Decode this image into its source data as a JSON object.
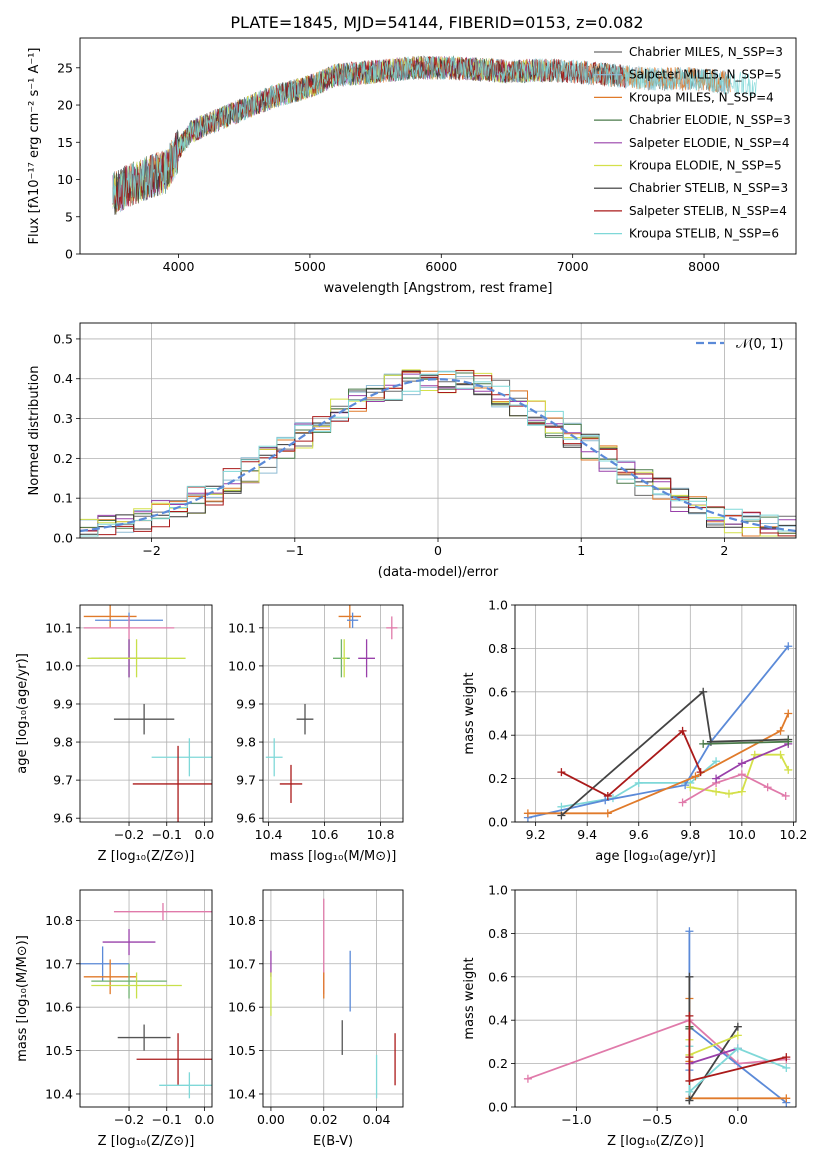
{
  "figure": {
    "suptitle": "PLATE=1845, MJD=54144, FIBERID=0153, z=0.082"
  },
  "chart_data": [
    {
      "id": "spectrum",
      "type": "line",
      "title": "PLATE=1845, MJD=54144, FIBERID=0153, z=0.082",
      "xlabel": "wavelength [Angstrom, rest frame]",
      "ylabel": "Flux [fλ10⁻¹⁷ erg cm⁻² s⁻¹ A⁻¹]",
      "xlim": [
        3250,
        8700
      ],
      "ylim": [
        0,
        29
      ],
      "xticks": [
        4000,
        5000,
        6000,
        7000,
        8000
      ],
      "yticks": [
        0,
        5,
        10,
        15,
        20,
        25
      ],
      "grid": false,
      "legend_position": "top-right",
      "continuum": {
        "x": [
          3500,
          3600,
          3800,
          3900,
          4000,
          4100,
          4300,
          4500,
          4700,
          5000,
          5200,
          5500,
          5800,
          6000,
          6300,
          6500,
          6800,
          7000,
          7300,
          7600,
          7900,
          8200,
          8500
        ],
        "y": [
          8,
          9,
          10.5,
          11,
          14,
          16.5,
          18,
          19.5,
          21,
          22.5,
          24,
          24.5,
          25,
          25,
          24.8,
          24.5,
          24.7,
          24.5,
          24,
          23.5,
          23.5,
          23,
          22.5
        ]
      },
      "series": [
        {
          "name": "Chabrier MILES, N_SSP=3",
          "color": "#6a6a6a",
          "start": 3500,
          "end": 8200
        },
        {
          "name": "Salpeter MILES, N_SSP=5",
          "color": "#8fbcd4",
          "start": 3500,
          "end": 8200
        },
        {
          "name": "Kroupa MILES, N_SSP=4",
          "color": "#e07a2a",
          "start": 3500,
          "end": 8200
        },
        {
          "name": "Chabrier ELODIE, N_SSP=3",
          "color": "#4a7a4a",
          "start": 3500,
          "end": 6800
        },
        {
          "name": "Salpeter ELODIE, N_SSP=4",
          "color": "#9940aa",
          "start": 3500,
          "end": 6800
        },
        {
          "name": "Kroupa ELODIE, N_SSP=5",
          "color": "#d4e04a",
          "start": 3500,
          "end": 6800
        },
        {
          "name": "Chabrier STELIB, N_SSP=3",
          "color": "#333333",
          "start": 3500,
          "end": 7400
        },
        {
          "name": "Salpeter STELIB, N_SSP=4",
          "color": "#aa1a1a",
          "start": 3500,
          "end": 7400
        },
        {
          "name": "Kroupa STELIB, N_SSP=6",
          "color": "#7fd8d8",
          "start": 3500,
          "end": 8400
        }
      ]
    },
    {
      "id": "residuals",
      "type": "histogram",
      "xlabel": "(data-model)/error",
      "ylabel": "Normed distribution",
      "xlim": [
        -2.5,
        2.5
      ],
      "ylim": [
        0,
        0.54
      ],
      "xticks": [
        -2,
        -1,
        0,
        1,
        2
      ],
      "yticks": [
        0.0,
        0.1,
        0.2,
        0.3,
        0.4,
        0.5
      ],
      "grid": true,
      "bin_width": 0.125,
      "legend": {
        "label": "𝒩(0, 1)",
        "position": "top-right"
      },
      "series": [
        {
          "name": "Chabrier MILES",
          "color": "#6a6a6a"
        },
        {
          "name": "Salpeter MILES",
          "color": "#8fbcd4"
        },
        {
          "name": "Kroupa MILES",
          "color": "#e07a2a"
        },
        {
          "name": "Chabrier ELODIE",
          "color": "#4a7a4a"
        },
        {
          "name": "Salpeter ELODIE",
          "color": "#9940aa"
        },
        {
          "name": "Kroupa ELODIE",
          "color": "#d4e04a"
        },
        {
          "name": "Chabrier STELIB",
          "color": "#333333"
        },
        {
          "name": "Salpeter STELIB",
          "color": "#aa1a1a"
        },
        {
          "name": "Kroupa STELIB",
          "color": "#7fd8d8"
        }
      ],
      "gaussian_color": "#5b8ad8"
    },
    {
      "id": "age-vs-Z",
      "type": "errorbar",
      "xlabel": "Z [log₁₀(Z/Z⊙)]",
      "ylabel": "age  [log₁₀(age/yr)]",
      "xlim": [
        -0.33,
        0.02
      ],
      "ylim": [
        9.59,
        10.16
      ],
      "xticks": [
        -0.2,
        -0.1,
        0.0
      ],
      "yticks": [
        9.6,
        9.7,
        9.8,
        9.9,
        10.0,
        10.1
      ],
      "grid": true,
      "points": [
        {
          "x": -0.25,
          "xerr": 0.07,
          "y": 10.13,
          "yerr": 0.03,
          "color": "#e07a2a"
        },
        {
          "x": -0.2,
          "xerr": 0.09,
          "y": 10.12,
          "yerr": 0.02,
          "color": "#5b8ad8"
        },
        {
          "x": -0.2,
          "xerr": 0.12,
          "y": 10.1,
          "yerr": 0.03,
          "color": "#e07aaa"
        },
        {
          "x": -0.2,
          "xerr": 0.1,
          "y": 10.02,
          "yerr": 0.05,
          "color": "#6fb06f"
        },
        {
          "x": -0.2,
          "xerr": 0.08,
          "y": 10.02,
          "yerr": 0.05,
          "color": "#9940aa"
        },
        {
          "x": -0.18,
          "xerr": 0.13,
          "y": 10.02,
          "yerr": 0.05,
          "color": "#c8e04a"
        },
        {
          "x": -0.16,
          "xerr": 0.08,
          "y": 9.86,
          "yerr": 0.04,
          "color": "#555555"
        },
        {
          "x": -0.04,
          "xerr": 0.1,
          "y": 9.76,
          "yerr": 0.05,
          "color": "#7fd8d8"
        },
        {
          "x": -0.07,
          "xerr": 0.12,
          "y": 9.69,
          "yerr": 0.1,
          "color": "#aa1a1a"
        }
      ]
    },
    {
      "id": "age-vs-mass",
      "type": "errorbar",
      "xlabel": "mass [log₁₀(M/M⊙)]",
      "ylabel": "",
      "xlim": [
        10.38,
        10.88
      ],
      "ylim": [
        9.59,
        10.16
      ],
      "xticks": [
        10.4,
        10.6,
        10.8
      ],
      "yticks": [
        9.6,
        9.7,
        9.8,
        9.9,
        10.0,
        10.1
      ],
      "grid": true,
      "points": [
        {
          "x": 10.69,
          "xerr": 0.04,
          "y": 10.13,
          "yerr": 0.03,
          "color": "#e07a2a"
        },
        {
          "x": 10.7,
          "xerr": 0.02,
          "y": 10.12,
          "yerr": 0.02,
          "color": "#5b8ad8"
        },
        {
          "x": 10.84,
          "xerr": 0.02,
          "y": 10.1,
          "yerr": 0.03,
          "color": "#e07aaa"
        },
        {
          "x": 10.66,
          "xerr": 0.03,
          "y": 10.02,
          "yerr": 0.05,
          "color": "#6fb06f"
        },
        {
          "x": 10.75,
          "xerr": 0.03,
          "y": 10.02,
          "yerr": 0.05,
          "color": "#9940aa"
        },
        {
          "x": 10.67,
          "xerr": 0.01,
          "y": 10.02,
          "yerr": 0.05,
          "color": "#c8e04a"
        },
        {
          "x": 10.53,
          "xerr": 0.03,
          "y": 9.86,
          "yerr": 0.04,
          "color": "#555555"
        },
        {
          "x": 10.42,
          "xerr": 0.03,
          "y": 9.76,
          "yerr": 0.05,
          "color": "#7fd8d8"
        },
        {
          "x": 10.48,
          "xerr": 0.04,
          "y": 9.69,
          "yerr": 0.05,
          "color": "#aa1a1a"
        }
      ]
    },
    {
      "id": "weight-vs-age",
      "type": "line",
      "xlabel": "age  [log₁₀(age/yr)]",
      "ylabel": "mass weight",
      "xlim": [
        9.12,
        10.21
      ],
      "ylim": [
        0,
        1.0
      ],
      "xticks": [
        9.2,
        9.4,
        9.6,
        9.8,
        10.0,
        10.2
      ],
      "yticks": [
        0.0,
        0.2,
        0.4,
        0.6,
        0.8,
        1.0
      ],
      "grid": true,
      "series": [
        {
          "name": "Kroupa STELIB",
          "color": "#7fd8d8",
          "x": [
            9.3,
            9.5,
            9.6,
            9.8,
            9.9
          ],
          "y": [
            0.07,
            0.11,
            0.18,
            0.18,
            0.28
          ]
        },
        {
          "name": "Kroupa ELODIE",
          "color": "#d4e04a",
          "x": [
            9.8,
            9.9,
            9.95,
            10.0,
            10.05,
            10.15,
            10.18
          ],
          "y": [
            0.16,
            0.14,
            0.13,
            0.14,
            0.31,
            0.31,
            0.24
          ]
        },
        {
          "name": "Salpeter MILES",
          "color": "#e07aaa",
          "x": [
            9.77,
            9.9,
            10.0,
            10.1,
            10.17
          ],
          "y": [
            0.09,
            0.18,
            0.22,
            0.16,
            0.12
          ]
        },
        {
          "name": "Salpeter ELODIE",
          "color": "#9940aa",
          "x": [
            9.9,
            10.0,
            10.18
          ],
          "y": [
            0.2,
            0.27,
            0.36
          ]
        },
        {
          "name": "Chabrier MILES",
          "color": "#5b8ad8",
          "x": [
            9.17,
            9.47,
            9.78,
            9.88,
            10.18
          ],
          "y": [
            0.02,
            0.1,
            0.17,
            0.37,
            0.81
          ]
        },
        {
          "name": "Kroupa MILES",
          "color": "#e07a2a",
          "x": [
            9.17,
            9.48,
            9.82,
            10.15,
            10.18
          ],
          "y": [
            0.04,
            0.04,
            0.21,
            0.42,
            0.5
          ]
        },
        {
          "name": "Chabrier STELIB",
          "color": "#444444",
          "x": [
            9.3,
            9.85,
            9.88,
            10.18
          ],
          "y": [
            0.03,
            0.6,
            0.37,
            0.38
          ]
        },
        {
          "name": "Chabrier ELODIE",
          "color": "#4a7a4a",
          "x": [
            9.85,
            10.18
          ],
          "y": [
            0.36,
            0.37
          ]
        },
        {
          "name": "Salpeter STELIB",
          "color": "#aa1a1a",
          "x": [
            9.3,
            9.48,
            9.77,
            9.84
          ],
          "y": [
            0.23,
            0.12,
            0.42,
            0.23
          ]
        }
      ]
    },
    {
      "id": "mass-vs-Z",
      "type": "errorbar",
      "xlabel": "Z [log₁₀(Z/Z⊙)]",
      "ylabel": "mass [log₁₀(M/M⊙)]",
      "xlim": [
        -0.33,
        0.02
      ],
      "ylim": [
        10.37,
        10.87
      ],
      "xticks": [
        -0.2,
        -0.1,
        0.0
      ],
      "yticks": [
        10.4,
        10.5,
        10.6,
        10.7,
        10.8
      ],
      "grid": true,
      "points": [
        {
          "x": -0.11,
          "xerr": 0.13,
          "y": 10.82,
          "yerr": 0.02,
          "color": "#e07aaa"
        },
        {
          "x": -0.2,
          "xerr": 0.07,
          "y": 10.75,
          "yerr": 0.03,
          "color": "#9940aa"
        },
        {
          "x": -0.27,
          "xerr": 0.07,
          "y": 10.7,
          "yerr": 0.04,
          "color": "#5b8ad8"
        },
        {
          "x": -0.25,
          "xerr": 0.07,
          "y": 10.67,
          "yerr": 0.04,
          "color": "#e07a2a"
        },
        {
          "x": -0.2,
          "xerr": 0.1,
          "y": 10.66,
          "yerr": 0.04,
          "color": "#6fb06f"
        },
        {
          "x": -0.18,
          "xerr": 0.12,
          "y": 10.65,
          "yerr": 0.03,
          "color": "#c8e04a"
        },
        {
          "x": -0.16,
          "xerr": 0.07,
          "y": 10.53,
          "yerr": 0.03,
          "color": "#555555"
        },
        {
          "x": -0.07,
          "xerr": 0.11,
          "y": 10.48,
          "yerr": 0.06,
          "color": "#aa1a1a"
        },
        {
          "x": -0.04,
          "xerr": 0.08,
          "y": 10.42,
          "yerr": 0.03,
          "color": "#7fd8d8"
        }
      ]
    },
    {
      "id": "mass-vs-EBV",
      "type": "errorbar",
      "xlabel": "E(B-V)",
      "ylabel": "",
      "xlim": [
        -0.003,
        0.05
      ],
      "ylim": [
        10.37,
        10.87
      ],
      "xticks": [
        0.0,
        0.02,
        0.04
      ],
      "yticks": [
        10.4,
        10.5,
        10.6,
        10.7,
        10.8
      ],
      "grid": true,
      "points": [
        {
          "x": 0.02,
          "xerr": 0.0,
          "y": 10.74,
          "yerr": 0.11,
          "color": "#e07aaa"
        },
        {
          "x": 0.0,
          "xerr": 0.0,
          "y": 10.7,
          "yerr": 0.03,
          "color": "#9940aa"
        },
        {
          "x": 0.03,
          "xerr": 0.0,
          "y": 10.66,
          "yerr": 0.07,
          "color": "#5b8ad8"
        },
        {
          "x": 0.02,
          "xerr": 0.0,
          "y": 10.65,
          "yerr": 0.03,
          "color": "#e07a2a"
        },
        {
          "x": 0.0,
          "xerr": 0.0,
          "y": 10.63,
          "yerr": 0.05,
          "color": "#c8e04a"
        },
        {
          "x": 0.027,
          "xerr": 0.0,
          "y": 10.53,
          "yerr": 0.04,
          "color": "#555555"
        },
        {
          "x": 0.047,
          "xerr": 0.0,
          "y": 10.48,
          "yerr": 0.06,
          "color": "#aa1a1a"
        },
        {
          "x": 0.04,
          "xerr": 0.0,
          "y": 10.44,
          "yerr": 0.05,
          "color": "#7fd8d8"
        }
      ]
    },
    {
      "id": "weight-vs-Z",
      "type": "line",
      "xlabel": "Z [log₁₀(Z/Z⊙)]",
      "ylabel": "mass weight",
      "xlim": [
        -1.38,
        0.36
      ],
      "ylim": [
        0,
        1.0
      ],
      "xticks": [
        -1.0,
        -0.5,
        0.0
      ],
      "yticks": [
        0.0,
        0.2,
        0.4,
        0.6,
        0.8,
        1.0
      ],
      "grid": true,
      "series": [
        {
          "name": "Salpeter MILES",
          "color": "#e07aaa",
          "x": [
            -1.3,
            -0.3,
            0.0,
            0.3
          ],
          "y": [
            0.13,
            0.4,
            0.2,
            0.22
          ]
        },
        {
          "name": "Chabrier MILES",
          "color": "#5b8ad8",
          "x": [
            -0.3,
            -0.3,
            -0.3,
            0.3
          ],
          "y": [
            0.81,
            0.17,
            0.37,
            0.02
          ]
        },
        {
          "name": "Kroupa MILES",
          "color": "#e07a2a",
          "x": [
            -0.3,
            -0.3,
            -0.3,
            0.3
          ],
          "y": [
            0.5,
            0.21,
            0.04,
            0.04
          ]
        },
        {
          "name": "Chabrier STELIB",
          "color": "#444444",
          "x": [
            -0.3,
            -0.3,
            -0.3,
            0.0
          ],
          "y": [
            0.6,
            0.03,
            0.03,
            0.37
          ]
        },
        {
          "name": "Salpeter ELODIE",
          "color": "#9940aa",
          "x": [
            -0.3,
            -0.3,
            0.0
          ],
          "y": [
            0.36,
            0.2,
            0.27
          ]
        },
        {
          "name": "Kroupa ELODIE",
          "color": "#d4e04a",
          "x": [
            -0.3,
            -0.3,
            0.0
          ],
          "y": [
            0.31,
            0.24,
            0.33
          ]
        },
        {
          "name": "Kroupa STELIB",
          "color": "#7fd8d8",
          "x": [
            -0.3,
            -0.3,
            0.0,
            0.3
          ],
          "y": [
            0.28,
            0.07,
            0.27,
            0.18
          ]
        },
        {
          "name": "Chabrier ELODIE",
          "color": "#4a7a4a",
          "x": [
            -0.3,
            -0.3
          ],
          "y": [
            0.37,
            0.36
          ]
        },
        {
          "name": "Salpeter STELIB",
          "color": "#aa1a1a",
          "x": [
            -0.3,
            -0.3,
            -0.3,
            0.3
          ],
          "y": [
            0.42,
            0.23,
            0.12,
            0.23
          ]
        }
      ]
    }
  ]
}
